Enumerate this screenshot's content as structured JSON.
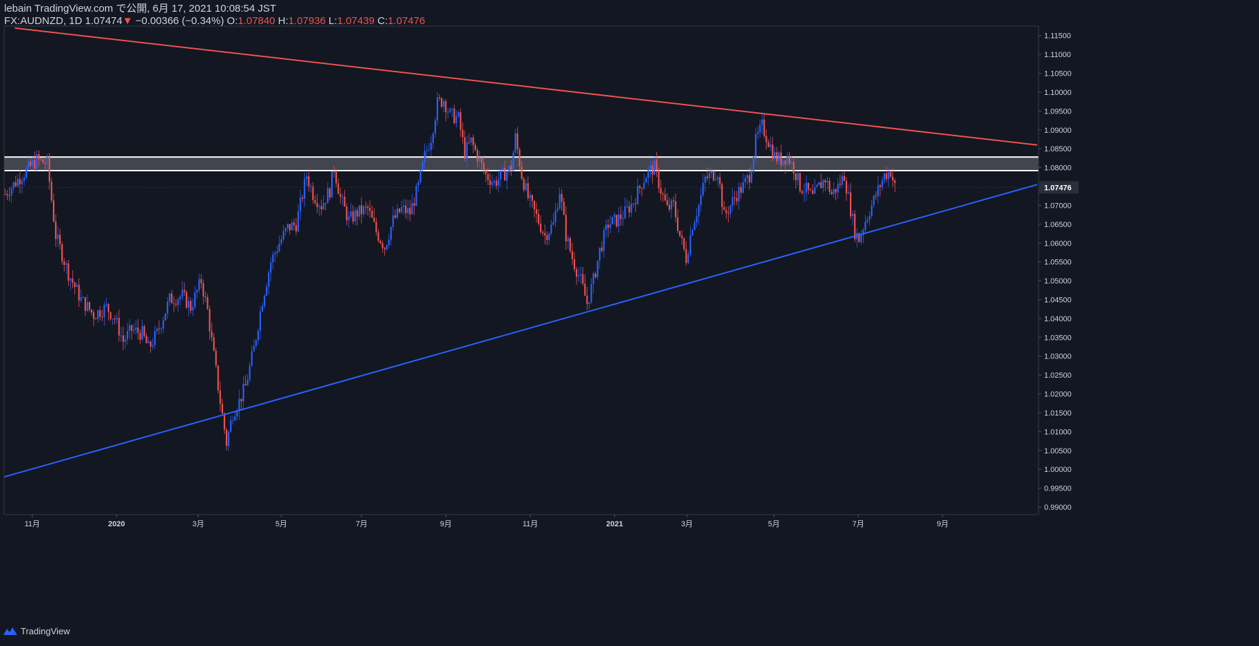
{
  "header": {
    "publish_line": "lebain TradingView.com で公開, 6月 17, 2021 10:08:54 JST",
    "symbol": "FX:AUDNZD, 1D",
    "last": "1.07474",
    "down_arrow": "▼",
    "change": "−0.00366 (−0.34%)",
    "o_label": "O:",
    "o_value": "1.07840",
    "h_label": "H:",
    "h_value": "1.07936",
    "l_label": "L:",
    "l_value": "1.07439",
    "c_label": "C:",
    "c_value": "1.07476"
  },
  "footer": {
    "brand": "TradingView",
    "logo_icon": "tradingview-logo-icon"
  },
  "colors": {
    "background": "#131722",
    "up": "#2962ff",
    "down": "#ef5350",
    "resistance": "#ef5350",
    "support": "#2962ff",
    "zone": "#ffffff",
    "axis_text": "#d1d4dc",
    "grid": "#1e222d"
  },
  "chart_data": {
    "type": "candlestick",
    "symbol": "FX:AUDNZD",
    "timeframe": "1D",
    "ylim": [
      0.988,
      1.1175
    ],
    "y_ticks": [
      "1.11500",
      "1.11000",
      "1.10500",
      "1.10000",
      "1.09500",
      "1.09000",
      "1.08500",
      "1.08000",
      "1.07500",
      "1.07000",
      "1.06500",
      "1.06000",
      "1.05500",
      "1.05000",
      "1.04500",
      "1.04000",
      "1.03500",
      "1.03000",
      "1.02500",
      "1.02000",
      "1.01500",
      "1.01000",
      "1.00500",
      "1.00000",
      "0.99500",
      "0.99000"
    ],
    "x_ticks": [
      "11月",
      "2020",
      "3月",
      "5月",
      "7月",
      "9月",
      "11月",
      "2021",
      "3月",
      "5月",
      "7月",
      "9月"
    ],
    "current_price": "1.07476",
    "approx_close_path": [
      [
        0,
        1.073
      ],
      [
        8,
        1.078
      ],
      [
        15,
        1.082
      ],
      [
        20,
        1.081
      ],
      [
        24,
        1.062
      ],
      [
        30,
        1.052
      ],
      [
        36,
        1.045
      ],
      [
        42,
        1.041
      ],
      [
        48,
        1.043
      ],
      [
        52,
        1.04
      ],
      [
        56,
        1.034
      ],
      [
        60,
        1.037
      ],
      [
        65,
        1.036
      ],
      [
        68,
        1.032
      ],
      [
        72,
        1.036
      ],
      [
        78,
        1.045
      ],
      [
        84,
        1.046
      ],
      [
        88,
        1.043
      ],
      [
        93,
        1.05
      ],
      [
        96,
        1.042
      ],
      [
        99,
        1.03
      ],
      [
        102,
        1.018
      ],
      [
        105,
        1.007
      ],
      [
        108,
        1.015
      ],
      [
        111,
        1.018
      ],
      [
        114,
        1.022
      ],
      [
        118,
        1.032
      ],
      [
        122,
        1.045
      ],
      [
        126,
        1.055
      ],
      [
        130,
        1.06
      ],
      [
        134,
        1.064
      ],
      [
        138,
        1.065
      ],
      [
        143,
        1.078
      ],
      [
        146,
        1.073
      ],
      [
        150,
        1.07
      ],
      [
        154,
        1.074
      ],
      [
        156,
        1.08
      ],
      [
        159,
        1.072
      ],
      [
        163,
        1.066
      ],
      [
        167,
        1.068
      ],
      [
        172,
        1.069
      ],
      [
        176,
        1.063
      ],
      [
        180,
        1.059
      ],
      [
        184,
        1.066
      ],
      [
        188,
        1.069
      ],
      [
        192,
        1.068
      ],
      [
        196,
        1.075
      ],
      [
        199,
        1.083
      ],
      [
        202,
        1.088
      ],
      [
        205,
        1.097
      ],
      [
        208,
        1.098
      ],
      [
        211,
        1.094
      ],
      [
        215,
        1.093
      ],
      [
        218,
        1.084
      ],
      [
        221,
        1.087
      ],
      [
        224,
        1.083
      ],
      [
        228,
        1.078
      ],
      [
        232,
        1.076
      ],
      [
        236,
        1.078
      ],
      [
        240,
        1.08
      ],
      [
        242,
        1.088
      ],
      [
        245,
        1.078
      ],
      [
        248,
        1.072
      ],
      [
        252,
        1.067
      ],
      [
        256,
        1.062
      ],
      [
        260,
        1.065
      ],
      [
        263,
        1.074
      ],
      [
        266,
        1.062
      ],
      [
        269,
        1.056
      ],
      [
        273,
        1.05
      ],
      [
        276,
        1.044
      ],
      [
        279,
        1.05
      ],
      [
        282,
        1.058
      ],
      [
        286,
        1.065
      ],
      [
        290,
        1.066
      ],
      [
        294,
        1.068
      ],
      [
        298,
        1.071
      ],
      [
        302,
        1.076
      ],
      [
        305,
        1.079
      ],
      [
        308,
        1.08
      ],
      [
        311,
        1.074
      ],
      [
        314,
        1.069
      ],
      [
        317,
        1.07
      ],
      [
        320,
        1.062
      ],
      [
        323,
        1.056
      ],
      [
        326,
        1.065
      ],
      [
        329,
        1.07
      ],
      [
        332,
        1.077
      ],
      [
        335,
        1.078
      ],
      [
        338,
        1.079
      ],
      [
        341,
        1.067
      ],
      [
        344,
        1.07
      ],
      [
        347,
        1.073
      ],
      [
        350,
        1.075
      ],
      [
        353,
        1.078
      ],
      [
        356,
        1.087
      ],
      [
        359,
        1.091
      ],
      [
        362,
        1.087
      ],
      [
        365,
        1.083
      ],
      [
        368,
        1.082
      ],
      [
        371,
        1.083
      ],
      [
        374,
        1.08
      ],
      [
        377,
        1.075
      ],
      [
        380,
        1.074
      ],
      [
        383,
        1.072
      ],
      [
        386,
        1.075
      ],
      [
        389,
        1.077
      ],
      [
        392,
        1.073
      ],
      [
        395,
        1.075
      ],
      [
        398,
        1.078
      ],
      [
        401,
        1.069
      ],
      [
        403,
        1.063
      ],
      [
        405,
        1.061
      ],
      [
        408,
        1.066
      ],
      [
        411,
        1.07
      ],
      [
        414,
        1.074
      ],
      [
        417,
        1.078
      ],
      [
        420,
        1.079
      ],
      [
        422,
        1.0748
      ]
    ],
    "annotations": [
      {
        "type": "trendline",
        "name": "resistance",
        "color": "red",
        "p1": [
          5,
          1.117
        ],
        "p2": [
          490,
          1.086
        ]
      },
      {
        "type": "trendline",
        "name": "support",
        "color": "blue",
        "p1": [
          0,
          0.998
        ],
        "p2": [
          490,
          1.0755
        ]
      },
      {
        "type": "zone",
        "name": "resistance-zone",
        "y1": 1.0792,
        "y2": 1.0828
      }
    ]
  }
}
